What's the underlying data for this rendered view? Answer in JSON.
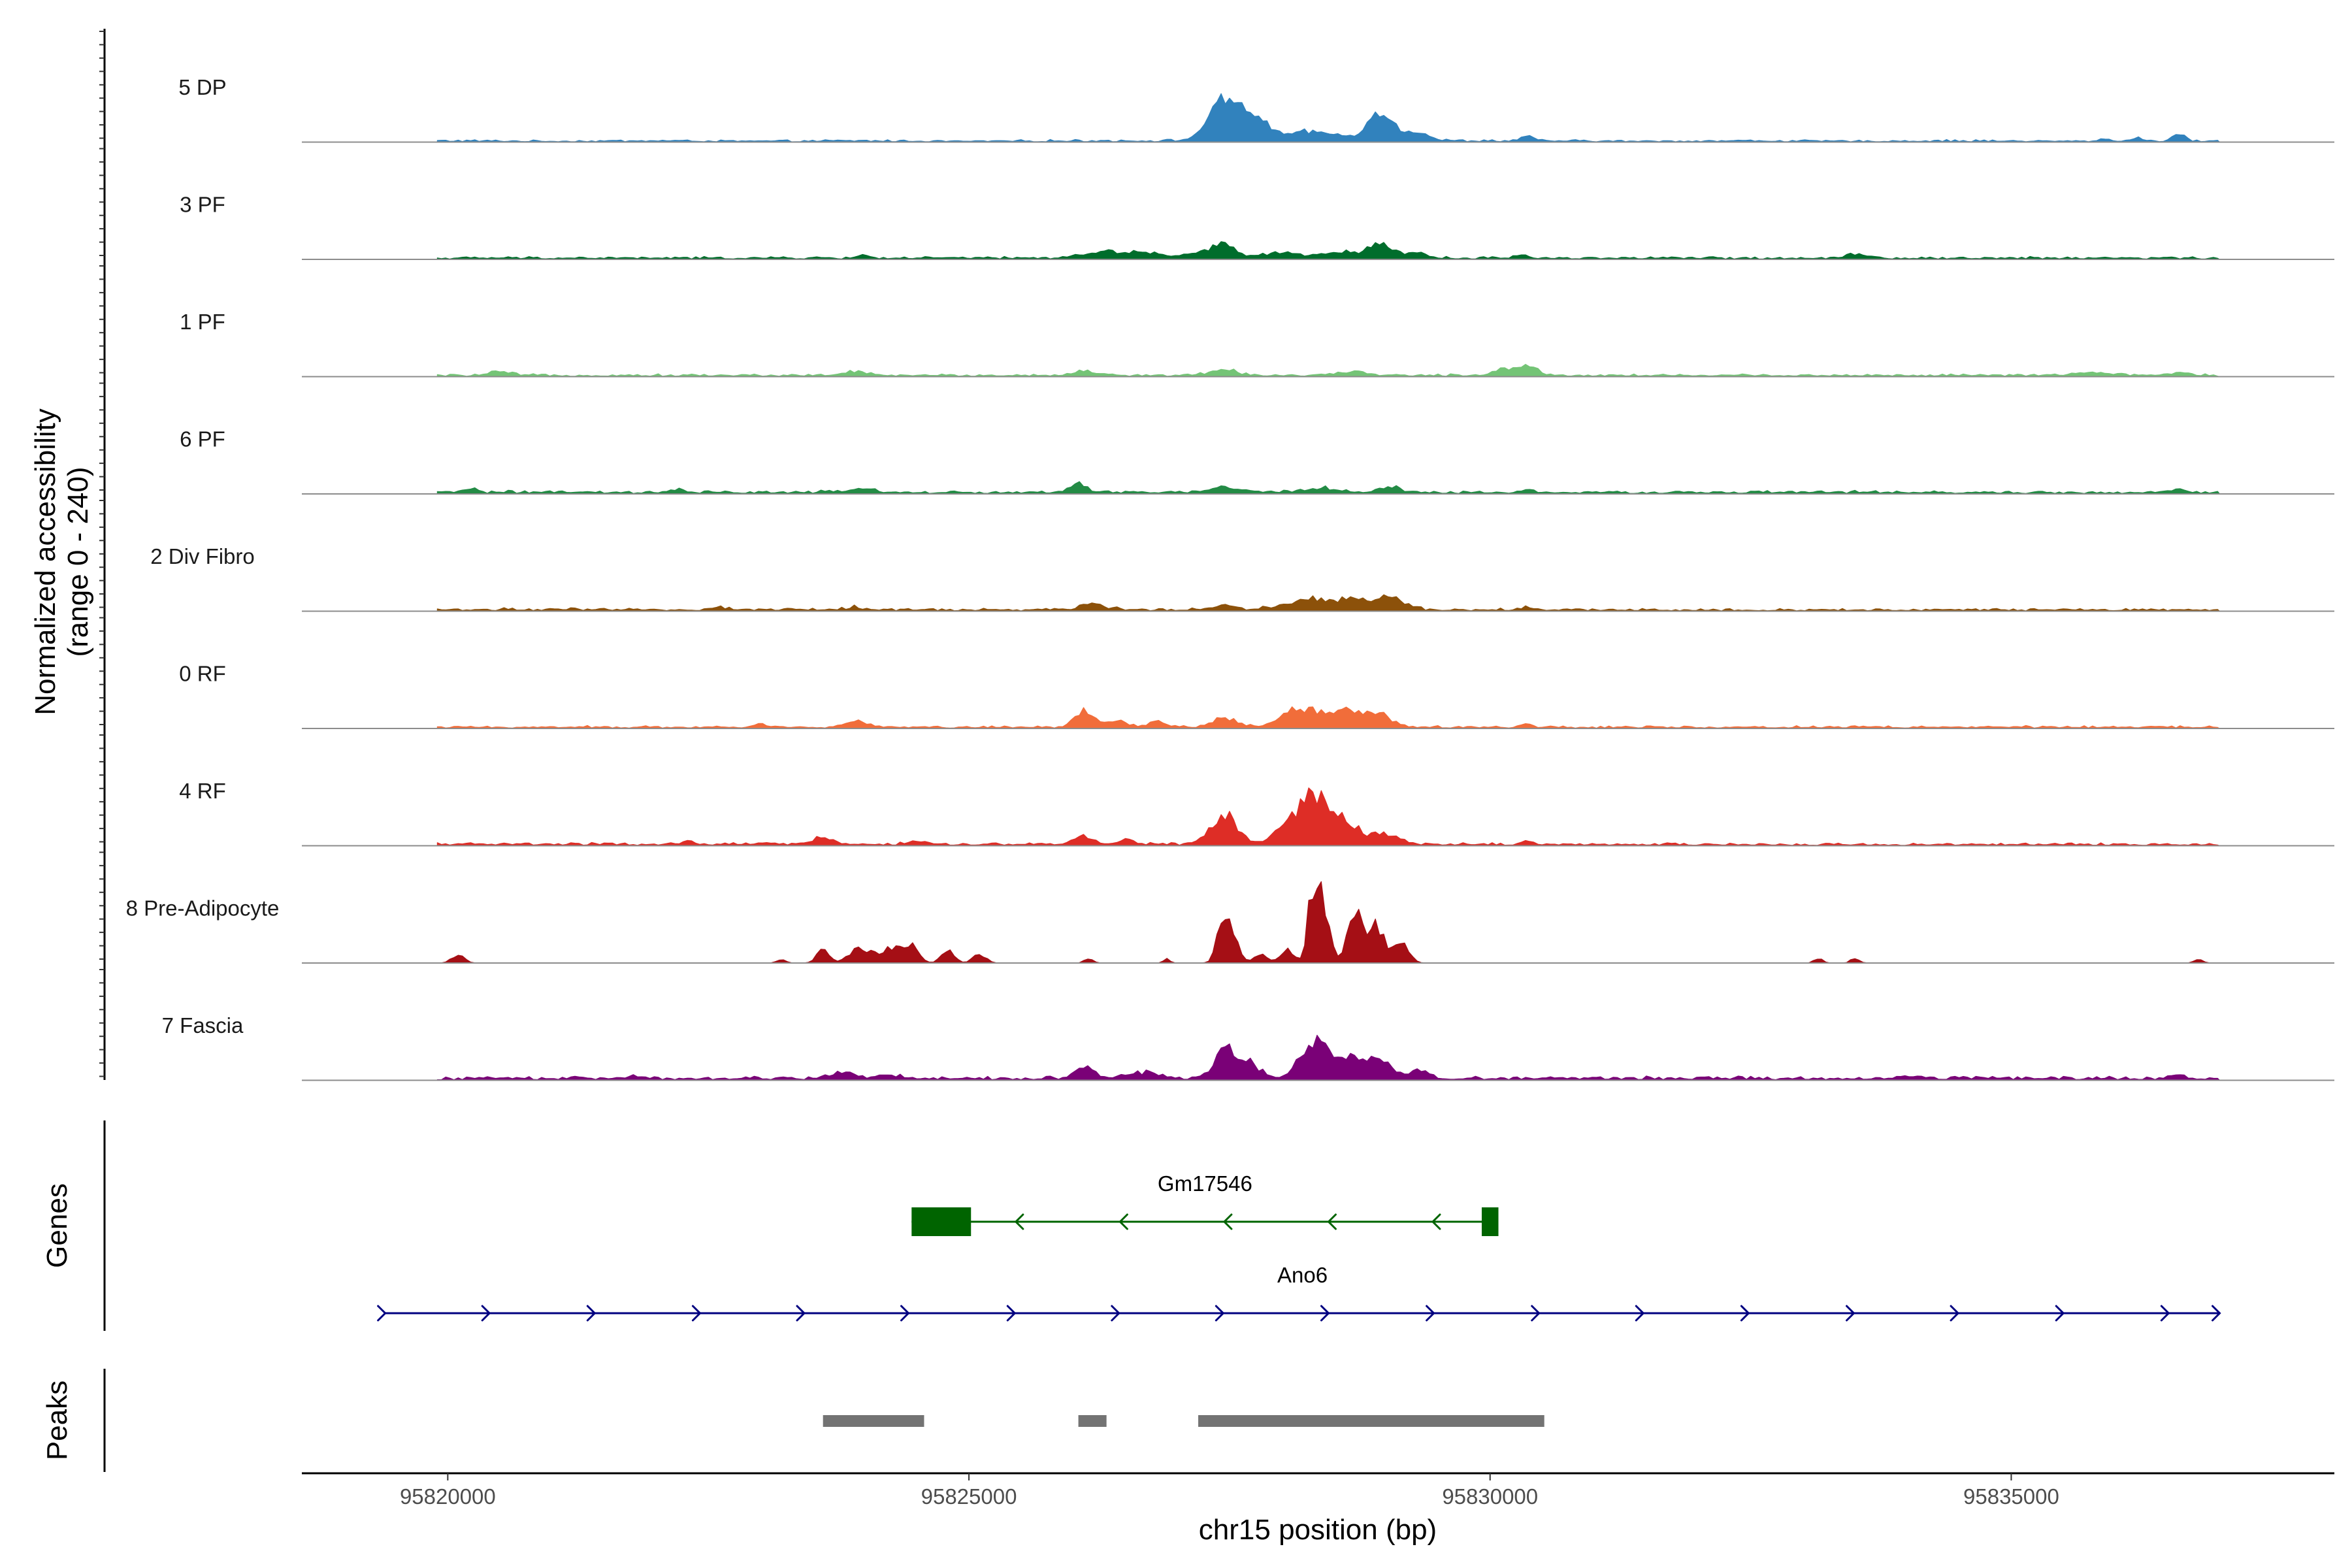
{
  "chart_data": {
    "type": "area",
    "ylabel_line1": "Normalized accessibility",
    "ylabel_line2": "(range 0 - 240)",
    "ylim": [
      0,
      240
    ],
    "xlabel": "chr15 position (bp)",
    "xlim": [
      95818600,
      95838100
    ],
    "xticks": [
      95820000,
      95825000,
      95830000,
      95835000
    ],
    "xtick_labels": [
      "95820000",
      "95825000",
      "95830000",
      "95835000"
    ],
    "tracks": [
      {
        "name": "5 DP",
        "color": "#3182bd",
        "baseline": [
          [
            95819000,
            2
          ],
          [
            95820000,
            3
          ],
          [
            95821000,
            2
          ],
          [
            95822000,
            3
          ],
          [
            95823000,
            2
          ],
          [
            95824000,
            3
          ],
          [
            95825000,
            2
          ],
          [
            95826000,
            3
          ],
          [
            95830500,
            3
          ],
          [
            95831500,
            2
          ],
          [
            95832500,
            3
          ],
          [
            95833500,
            2
          ],
          [
            95834500,
            3
          ],
          [
            95835500,
            2
          ],
          [
            95836800,
            3
          ]
        ],
        "peaks": [
          [
            95827450,
            78,
            150
          ],
          [
            95827750,
            45,
            120
          ],
          [
            95828300,
            18,
            250
          ],
          [
            95828950,
            52,
            130
          ],
          [
            95829300,
            18,
            110
          ],
          [
            95830350,
            12,
            50
          ],
          [
            95836600,
            12,
            60
          ],
          [
            95836200,
            8,
            45
          ],
          [
            95835900,
            6,
            40
          ]
        ]
      },
      {
        "name": "3 PF",
        "color": "#006d2c",
        "baseline": [
          [
            95819000,
            2
          ],
          [
            95820500,
            3
          ],
          [
            95822000,
            3
          ],
          [
            95823500,
            3
          ],
          [
            95825000,
            3
          ],
          [
            95826000,
            3
          ],
          [
            95831000,
            3
          ],
          [
            95832000,
            3
          ],
          [
            95834000,
            3
          ],
          [
            95836000,
            3
          ],
          [
            95836800,
            3
          ]
        ],
        "peaks": [
          [
            95826300,
            12,
            200
          ],
          [
            95826700,
            10,
            180
          ],
          [
            95827450,
            26,
            110
          ],
          [
            95827200,
            10,
            120
          ],
          [
            95828000,
            10,
            180
          ],
          [
            95828550,
            12,
            160
          ],
          [
            95828950,
            32,
            110
          ],
          [
            95829300,
            12,
            90
          ],
          [
            95833500,
            10,
            90
          ],
          [
            95830300,
            7,
            60
          ],
          [
            95824000,
            6,
            60
          ]
        ]
      },
      {
        "name": "1 PF",
        "color": "#74c476",
        "baseline": [
          [
            95819000,
            2
          ],
          [
            95820500,
            3
          ],
          [
            95822000,
            3
          ],
          [
            95823500,
            3
          ],
          [
            95825000,
            3
          ],
          [
            95827000,
            3
          ],
          [
            95831000,
            3
          ],
          [
            95833000,
            3
          ],
          [
            95835000,
            3
          ],
          [
            95836800,
            3
          ]
        ],
        "peaks": [
          [
            95820500,
            7,
            100
          ],
          [
            95823900,
            7,
            120
          ],
          [
            95826100,
            8,
            120
          ],
          [
            95827450,
            10,
            140
          ],
          [
            95830100,
            14,
            80
          ],
          [
            95830350,
            22,
            90
          ],
          [
            95835800,
            6,
            150
          ],
          [
            95836600,
            6,
            100
          ],
          [
            95828700,
            6,
            150
          ]
        ]
      },
      {
        "name": "6 PF",
        "color": "#238b45",
        "baseline": [
          [
            95819000,
            2
          ],
          [
            95820500,
            4
          ],
          [
            95822000,
            3
          ],
          [
            95823500,
            4
          ],
          [
            95825000,
            3
          ],
          [
            95827000,
            4
          ],
          [
            95831000,
            3
          ],
          [
            95833000,
            4
          ],
          [
            95835000,
            3
          ],
          [
            95836800,
            3
          ]
        ],
        "peaks": [
          [
            95826050,
            22,
            70
          ],
          [
            95824000,
            10,
            90
          ],
          [
            95820200,
            8,
            70
          ],
          [
            95827450,
            12,
            120
          ],
          [
            95828350,
            9,
            160
          ],
          [
            95829050,
            10,
            110
          ],
          [
            95830350,
            7,
            60
          ],
          [
            95836600,
            8,
            60
          ],
          [
            95822200,
            6,
            60
          ]
        ]
      },
      {
        "name": "2 Div Fibro",
        "color": "#8c510a",
        "baseline": [
          [
            95819000,
            2
          ],
          [
            95820500,
            4
          ],
          [
            95822000,
            3
          ],
          [
            95823500,
            4
          ],
          [
            95825000,
            3
          ],
          [
            95827000,
            4
          ],
          [
            95831000,
            3
          ],
          [
            95833000,
            3
          ],
          [
            95835000,
            3
          ],
          [
            95836800,
            3
          ]
        ],
        "peaks": [
          [
            95826200,
            12,
            110
          ],
          [
            95827450,
            10,
            90
          ],
          [
            95828300,
            22,
            250
          ],
          [
            95829050,
            26,
            130
          ],
          [
            95828700,
            16,
            120
          ],
          [
            95823900,
            7,
            60
          ],
          [
            95830350,
            6,
            70
          ],
          [
            95822600,
            6,
            60
          ]
        ]
      },
      {
        "name": "0 RF",
        "color": "#f16d3a",
        "baseline": [
          [
            95819000,
            2
          ],
          [
            95820500,
            3
          ],
          [
            95822000,
            3
          ],
          [
            95823500,
            3
          ],
          [
            95825000,
            3
          ],
          [
            95826500,
            3
          ],
          [
            95831000,
            3
          ],
          [
            95833000,
            3
          ],
          [
            95835000,
            3
          ],
          [
            95836800,
            3
          ]
        ],
        "peaks": [
          [
            95823900,
            12,
            100
          ],
          [
            95826100,
            32,
            90
          ],
          [
            95826400,
            14,
            100
          ],
          [
            95826800,
            10,
            90
          ],
          [
            95827450,
            20,
            120
          ],
          [
            95828200,
            40,
            180
          ],
          [
            95828650,
            32,
            150
          ],
          [
            95828950,
            22,
            120
          ],
          [
            95823000,
            8,
            60
          ],
          [
            95830350,
            6,
            60
          ]
        ]
      },
      {
        "name": "4 RF",
        "color": "#de2d26",
        "baseline": [
          [
            95819000,
            2
          ],
          [
            95820500,
            4
          ],
          [
            95822000,
            3
          ],
          [
            95823500,
            4
          ],
          [
            95825000,
            3
          ],
          [
            95826500,
            4
          ],
          [
            95831000,
            3
          ],
          [
            95833000,
            3
          ],
          [
            95835000,
            3
          ],
          [
            95836800,
            3
          ]
        ],
        "peaks": [
          [
            95823600,
            16,
            80
          ],
          [
            95826100,
            18,
            80
          ],
          [
            95826500,
            8,
            80
          ],
          [
            95827450,
            60,
            120
          ],
          [
            95828200,
            60,
            180
          ],
          [
            95828600,
            44,
            150
          ],
          [
            95828350,
            50,
            120
          ],
          [
            95829000,
            18,
            130
          ],
          [
            95822300,
            7,
            60
          ],
          [
            95830350,
            8,
            50
          ],
          [
            95824500,
            6,
            80
          ]
        ]
      },
      {
        "name": "8 Pre-Adipocyte",
        "color": "#a50f15",
        "baseline": [],
        "peaks": [
          [
            95820100,
            16,
            60
          ],
          [
            95823200,
            8,
            40
          ],
          [
            95823600,
            26,
            60
          ],
          [
            95823950,
            28,
            100
          ],
          [
            95824250,
            30,
            110
          ],
          [
            95824450,
            30,
            70
          ],
          [
            95824800,
            28,
            60
          ],
          [
            95825100,
            18,
            60
          ],
          [
            95826150,
            10,
            40
          ],
          [
            95826900,
            8,
            30
          ],
          [
            95827450,
            100,
            60
          ],
          [
            95827550,
            30,
            60
          ],
          [
            95827800,
            20,
            60
          ],
          [
            95828050,
            30,
            60
          ],
          [
            95828300,
            140,
            50
          ],
          [
            95828400,
            110,
            60
          ],
          [
            95828700,
            100,
            70
          ],
          [
            95828900,
            80,
            80
          ],
          [
            95829150,
            40,
            70
          ],
          [
            95833150,
            10,
            40
          ],
          [
            95833500,
            10,
            40
          ],
          [
            95836800,
            8,
            40
          ]
        ]
      },
      {
        "name": "7 Fascia",
        "color": "#7a0177",
        "baseline": [
          [
            95819000,
            2
          ],
          [
            95820500,
            5
          ],
          [
            95822000,
            4
          ],
          [
            95823000,
            5
          ],
          [
            95825000,
            4
          ],
          [
            95826000,
            5
          ],
          [
            95830500,
            4
          ],
          [
            95832000,
            5
          ],
          [
            95833500,
            4
          ],
          [
            95835000,
            5
          ],
          [
            95836800,
            4
          ]
        ],
        "peaks": [
          [
            95823800,
            14,
            100
          ],
          [
            95824200,
            10,
            100
          ],
          [
            95826100,
            22,
            90
          ],
          [
            95826700,
            12,
            150
          ],
          [
            95827450,
            70,
            90
          ],
          [
            95827700,
            30,
            100
          ],
          [
            95828300,
            70,
            130
          ],
          [
            95828650,
            44,
            150
          ],
          [
            95828950,
            40,
            90
          ],
          [
            95829300,
            16,
            100
          ],
          [
            95821800,
            6,
            80
          ],
          [
            95836600,
            10,
            60
          ],
          [
            95834000,
            6,
            80
          ]
        ]
      }
    ],
    "genes": {
      "title": "Genes",
      "list": [
        {
          "name": "Gm17546",
          "start": 95824450,
          "end": 95830080,
          "strand": "-",
          "color": "#006400",
          "exons": [
            [
              95824450,
              95825020
            ],
            [
              95829920,
              95830080
            ]
          ],
          "arrows": [
            95825450,
            95826450,
            95827450,
            95828450,
            95829450
          ]
        },
        {
          "name": "Ano6",
          "start": 95819400,
          "end": 95837000,
          "strand": "+",
          "color": "#000080",
          "exons": [],
          "arrows": [
            95819400,
            95820400,
            95821410,
            95822420,
            95823420,
            95824420,
            95825440,
            95826440,
            95827440,
            95828450,
            95829460,
            95830470,
            95831470,
            95832480,
            95833490,
            95834490,
            95835500,
            95836510,
            95837000
          ]
        }
      ]
    },
    "peaks_track": {
      "title": "Peaks",
      "color": "#737373",
      "regions": [
        [
          95823600,
          95824570
        ],
        [
          95826050,
          95826320
        ],
        [
          95827200,
          95830520
        ]
      ]
    }
  }
}
